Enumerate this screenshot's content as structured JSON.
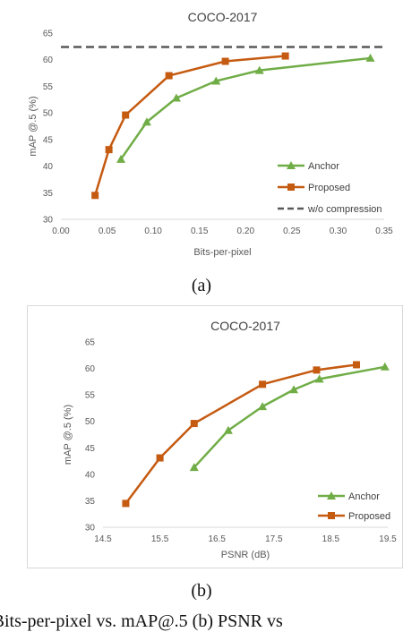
{
  "captions": {
    "a": "(a)",
    "b": "(b)",
    "main": ") Bits-per-pixel vs. mAP@.5 (b) PSNR vs"
  },
  "chart_data": [
    {
      "type": "line",
      "title": "COCO-2017",
      "xlabel": "Bits-per-pixel",
      "ylabel": "mAP @.5 (%)",
      "xlim": [
        0.0,
        0.35
      ],
      "ylim": [
        30,
        65
      ],
      "xticks": [
        "0.00",
        "0.05",
        "0.10",
        "0.15",
        "0.20",
        "0.25",
        "0.30",
        "0.35"
      ],
      "yticks": [
        "30",
        "35",
        "40",
        "45",
        "50",
        "55",
        "60",
        "65"
      ],
      "grid": false,
      "legend_position": "bottom-right",
      "series": [
        {
          "name": "Anchor",
          "color": "#70ad47",
          "marker": "triangle",
          "x": [
            0.065,
            0.093,
            0.125,
            0.168,
            0.215,
            0.335
          ],
          "y": [
            41.3,
            48.3,
            52.8,
            56.0,
            58.0,
            60.3
          ]
        },
        {
          "name": "Proposed",
          "color": "#c55a11",
          "marker": "square",
          "x": [
            0.037,
            0.052,
            0.07,
            0.117,
            0.178,
            0.243
          ],
          "y": [
            34.5,
            43.1,
            49.6,
            57.0,
            59.7,
            60.7
          ]
        },
        {
          "name": "w/o compression",
          "color": "#595959",
          "marker": "none",
          "dashed": true,
          "x": [
            0.0,
            0.35
          ],
          "y": [
            62.4,
            62.4
          ]
        }
      ]
    },
    {
      "type": "line",
      "title": "COCO-2017",
      "xlabel": "PSNR (dB)",
      "ylabel": "mAP @.5 (%)",
      "xlim": [
        14.5,
        19.5
      ],
      "ylim": [
        30,
        65
      ],
      "xticks": [
        "14.5",
        "15.5",
        "16.5",
        "17.5",
        "18.5",
        "19.5"
      ],
      "yticks": [
        "30",
        "35",
        "40",
        "45",
        "50",
        "55",
        "60",
        "65"
      ],
      "grid": false,
      "legend_position": "bottom-right",
      "series": [
        {
          "name": "Anchor",
          "color": "#70ad47",
          "marker": "triangle",
          "x": [
            16.1,
            16.7,
            17.3,
            17.85,
            18.3,
            19.45
          ],
          "y": [
            41.3,
            48.3,
            52.8,
            56.0,
            58.0,
            60.3
          ]
        },
        {
          "name": "Proposed",
          "color": "#c55a11",
          "marker": "square",
          "x": [
            14.9,
            15.5,
            16.1,
            17.3,
            18.25,
            18.95
          ],
          "y": [
            34.5,
            43.1,
            49.6,
            57.0,
            59.7,
            60.7
          ]
        }
      ]
    }
  ]
}
